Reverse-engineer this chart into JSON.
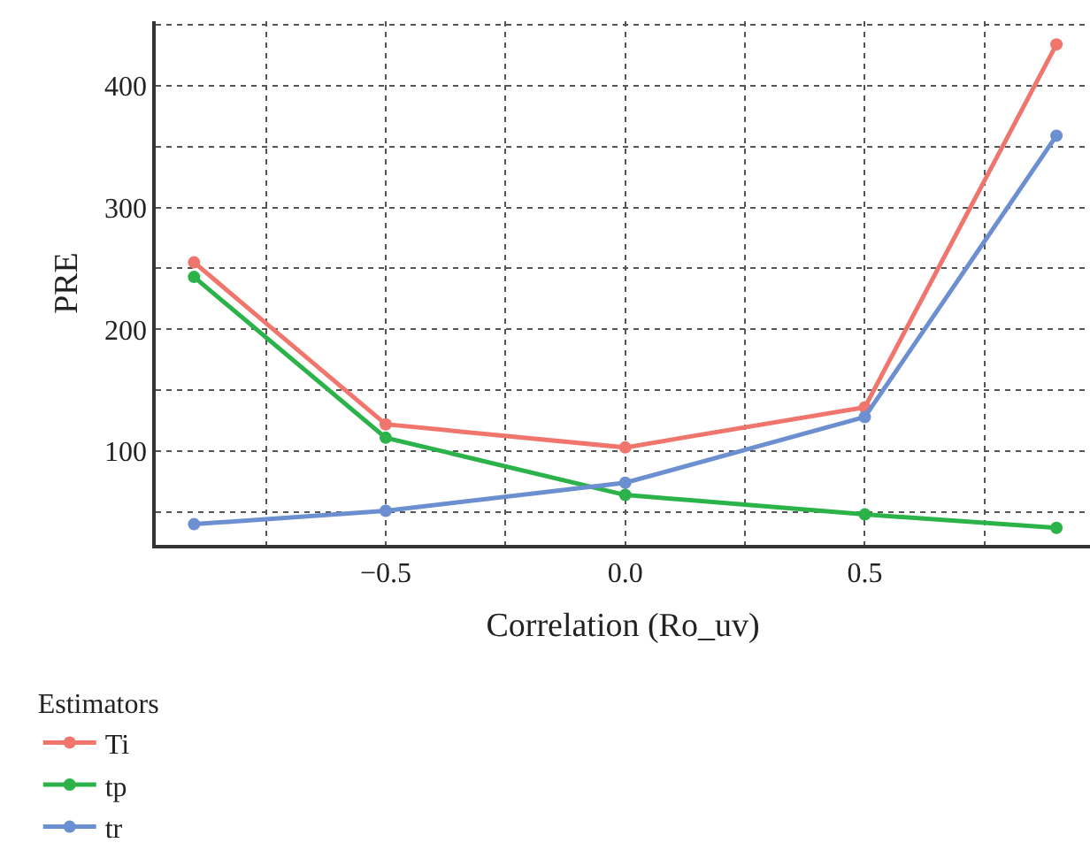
{
  "chart_data": {
    "type": "line",
    "xlabel": "Correlation (Ro_uv)",
    "ylabel": "PRE",
    "legend_title": "Estimators",
    "x": [
      -0.9,
      -0.5,
      0,
      0.5,
      0.9
    ],
    "series": [
      {
        "name": "Ti",
        "color": "#f0766d",
        "values": [
          255,
          122,
          103,
          136,
          434
        ]
      },
      {
        "name": "tp",
        "color": "#2bb34a",
        "values": [
          243,
          111,
          64,
          48,
          37
        ]
      },
      {
        "name": "tr",
        "color": "#6b8fd0",
        "values": [
          40,
          51,
          74,
          128,
          359
        ]
      }
    ],
    "xlim": [
      -0.98,
      0.97
    ],
    "ylim": [
      23,
      453
    ],
    "xticks": [
      {
        "value": -0.75,
        "label": null
      },
      {
        "value": -0.5,
        "label": "−0.5"
      },
      {
        "value": -0.25,
        "label": null
      },
      {
        "value": 0,
        "label": "0.0"
      },
      {
        "value": 0.25,
        "label": null
      },
      {
        "value": 0.5,
        "label": "0.5"
      },
      {
        "value": 0.75,
        "label": null
      }
    ],
    "yticks": [
      {
        "value": 50,
        "label": null
      },
      100,
      {
        "value": 150,
        "label": null
      },
      200,
      {
        "value": 250,
        "label": null
      },
      300,
      {
        "value": 350,
        "label": null
      },
      400,
      {
        "value": 450,
        "label": null
      }
    ],
    "grid": true,
    "legend": "bottom left",
    "marker": "circle",
    "line_style": "solid"
  }
}
